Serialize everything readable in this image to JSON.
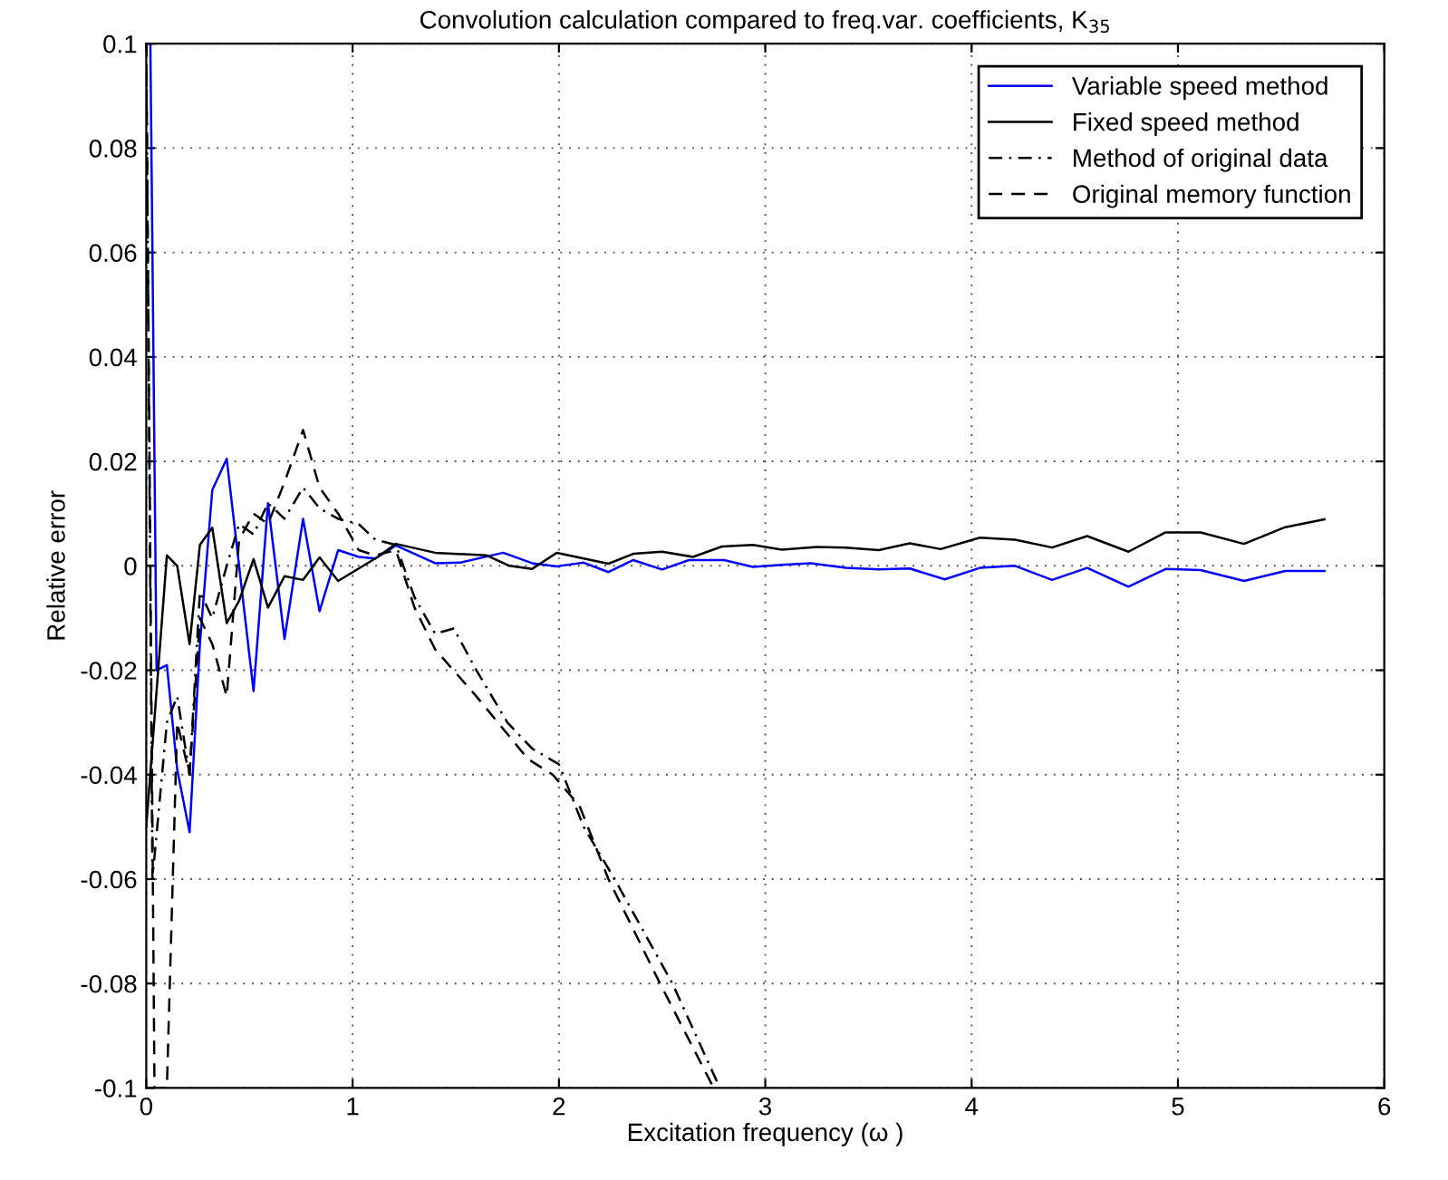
{
  "chart_data": {
    "type": "line",
    "title": "Convolution calculation compared to freq.var. coefficients, K$_{35}$",
    "xlabel": "Excitation frequency (ω )",
    "ylabel": "Relative error",
    "xlim": [
      0,
      6
    ],
    "ylim": [
      -0.1,
      0.1
    ],
    "xticks": [
      0,
      1,
      2,
      3,
      4,
      5,
      6
    ],
    "yticks": [
      -0.1,
      -0.08,
      -0.06,
      -0.04,
      -0.02,
      0,
      0.02,
      0.04,
      0.06,
      0.08,
      0.1
    ],
    "grid": true,
    "legend": "top right",
    "marker": "none",
    "series": [
      {
        "name": "Variable speed method",
        "color": "#0000ff",
        "line_style": "solid",
        "x": [
          0.02,
          0.05,
          0.1,
          0.15,
          0.21,
          0.26,
          0.32,
          0.39,
          0.45,
          0.52,
          0.59,
          0.67,
          0.76,
          0.84,
          0.93,
          1.03,
          1.11,
          1.21,
          1.4,
          1.52,
          1.73,
          1.87,
          1.99,
          2.12,
          2.24,
          2.36,
          2.5,
          2.63,
          2.8,
          2.94,
          3.08,
          3.22,
          3.39,
          3.55,
          3.7,
          3.87,
          4.04,
          4.21,
          4.39,
          4.56,
          4.76,
          4.94,
          5.11,
          5.32,
          5.52,
          5.71
        ],
        "values": [
          0.1,
          -0.02,
          -0.019,
          -0.039,
          -0.051,
          -0.015,
          0.0145,
          0.0205,
          0,
          -0.024,
          0.012,
          -0.014,
          0.009,
          -0.0087,
          0.003,
          0.0017,
          0.0014,
          0.0039,
          0.0005,
          0.0006,
          0.0025,
          0.0005,
          -0.0001,
          0.0006,
          -0.0012,
          0.0011,
          -0.0007,
          0.0011,
          0.0011,
          -0.0002,
          0.0002,
          0.0005,
          -0.0004,
          -0.0007,
          -0.0005,
          -0.0026,
          -0.0004,
          0,
          -0.0027,
          -0.0004,
          -0.004,
          -0.0006,
          -0.0008,
          -0.0029,
          -0.001,
          -0.001
        ]
      },
      {
        "name": "Fixed speed method",
        "color": "#000000",
        "line_style": "solid",
        "x": [
          0.0,
          0.1,
          0.15,
          0.21,
          0.26,
          0.32,
          0.39,
          0.45,
          0.52,
          0.59,
          0.67,
          0.76,
          0.84,
          0.93,
          1.11,
          1.21,
          1.4,
          1.65,
          1.76,
          1.87,
          1.99,
          2.24,
          2.36,
          2.5,
          2.65,
          2.79,
          2.94,
          3.08,
          3.25,
          3.39,
          3.55,
          3.7,
          3.85,
          4.04,
          4.21,
          4.39,
          4.56,
          4.76,
          4.94,
          5.11,
          5.32,
          5.52,
          5.71
        ],
        "values": [
          -0.05,
          0.002,
          0,
          -0.015,
          0.004,
          0.0073,
          -0.011,
          -0.0067,
          0.0013,
          -0.008,
          -0.002,
          -0.0027,
          0.0016,
          -0.0029,
          0.0014,
          0.0042,
          0.0025,
          0.002,
          0,
          -0.0006,
          0.0025,
          0.0004,
          0.0023,
          0.0027,
          0.0017,
          0.0037,
          0.004,
          0.0031,
          0.0036,
          0.0035,
          0.003,
          0.0043,
          0.0032,
          0.0054,
          0.005,
          0.0035,
          0.0057,
          0.0027,
          0.0064,
          0.0064,
          0.0042,
          0.0074,
          0.0089
        ]
      },
      {
        "name": "Method of original data",
        "color": "#000000",
        "line_style": "dashdot",
        "x": [
          0.0,
          0.03,
          0.1,
          0.15,
          0.21,
          0.26,
          0.32,
          0.39,
          0.45,
          0.52,
          0.59,
          0.67,
          0.76,
          0.84,
          0.93,
          1.03,
          1.11,
          1.21,
          1.3,
          1.4,
          1.49,
          1.6,
          1.75,
          1.87,
          2.0,
          2.12,
          2.27,
          2.55,
          2.78
        ],
        "values": [
          0.1,
          -0.06,
          -0.03,
          -0.025,
          -0.04,
          -0.005,
          -0.01,
          0.0,
          0.008,
          0.006,
          0.012,
          0.009,
          0.015,
          0.011,
          0.009,
          0.008,
          0.005,
          0.004,
          -0.006,
          -0.013,
          -0.012,
          -0.02,
          -0.03,
          -0.035,
          -0.038,
          -0.05,
          -0.06,
          -0.08,
          -0.1
        ]
      },
      {
        "name": "Original memory function",
        "color": "#000000",
        "line_style": "dashed",
        "x": [
          0.0,
          0.04,
          0.1,
          0.15,
          0.21,
          0.26,
          0.32,
          0.39,
          0.45,
          0.52,
          0.59,
          0.67,
          0.76,
          0.84,
          0.93,
          1.03,
          1.11,
          1.21,
          1.3,
          1.4,
          1.6,
          1.85,
          1.97,
          2.1,
          2.24,
          2.49,
          2.75
        ],
        "values": [
          0.1,
          -0.1,
          -0.1,
          -0.03,
          -0.04,
          -0.01,
          -0.015,
          -0.025,
          0.005,
          0.01,
          0.008,
          0.016,
          0.026,
          0.015,
          0.01,
          0.003,
          0.002,
          0.003,
          -0.008,
          -0.016,
          -0.025,
          -0.037,
          -0.04,
          -0.046,
          -0.06,
          -0.08,
          -0.1
        ]
      }
    ]
  }
}
